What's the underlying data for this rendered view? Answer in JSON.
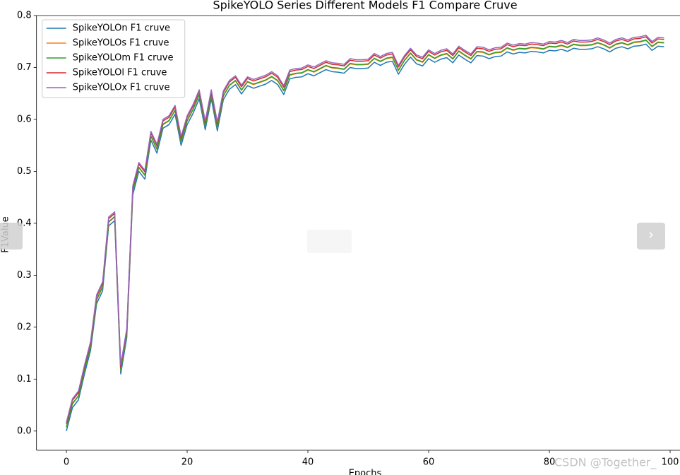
{
  "chart_data": {
    "type": "line",
    "title": "SpikeYOLO Series Different Models F1 Compare Cruve",
    "x_label": "Epochs",
    "y_label": "F1Value",
    "legend": "upper left",
    "grid": false,
    "xlim": [
      -4.95,
      103.95
    ],
    "ylim": [
      -0.037,
      0.8
    ],
    "xticks": [
      0,
      20,
      40,
      60,
      80,
      100
    ],
    "yticks": [
      {
        "value": 0,
        "label": "0.0"
      },
      0.1,
      0.2,
      0.3,
      0.4,
      0.5,
      0.6,
      0.7,
      0.8
    ],
    "x": [
      0,
      1,
      2,
      3,
      4,
      5,
      6,
      7,
      8,
      9,
      10,
      11,
      12,
      13,
      14,
      15,
      16,
      17,
      18,
      19,
      20,
      21,
      22,
      23,
      24,
      25,
      26,
      27,
      28,
      29,
      30,
      31,
      32,
      33,
      34,
      35,
      36,
      37,
      38,
      39,
      40,
      41,
      42,
      43,
      44,
      45,
      46,
      47,
      48,
      49,
      50,
      51,
      52,
      53,
      54,
      55,
      56,
      57,
      58,
      59,
      60,
      61,
      62,
      63,
      64,
      65,
      66,
      67,
      68,
      69,
      70,
      71,
      72,
      73,
      74,
      75,
      76,
      77,
      78,
      79,
      80,
      81,
      82,
      83,
      84,
      85,
      86,
      87,
      88,
      89,
      90,
      91,
      92,
      93,
      94,
      95,
      96,
      97,
      98,
      99
    ],
    "series": [
      {
        "name": "SpikeYOLOn F1 cruve",
        "color": "#1f77b4",
        "values": [
          0.0,
          0.045,
          0.06,
          0.11,
          0.155,
          0.245,
          0.27,
          0.395,
          0.405,
          0.11,
          0.18,
          0.455,
          0.5,
          0.485,
          0.56,
          0.535,
          0.583,
          0.59,
          0.61,
          0.55,
          0.59,
          0.612,
          0.64,
          0.58,
          0.64,
          0.578,
          0.638,
          0.658,
          0.667,
          0.649,
          0.665,
          0.66,
          0.664,
          0.668,
          0.675,
          0.667,
          0.648,
          0.678,
          0.681,
          0.682,
          0.688,
          0.684,
          0.69,
          0.696,
          0.692,
          0.691,
          0.689,
          0.7,
          0.698,
          0.698,
          0.699,
          0.71,
          0.704,
          0.71,
          0.712,
          0.687,
          0.706,
          0.72,
          0.707,
          0.703,
          0.717,
          0.71,
          0.716,
          0.719,
          0.709,
          0.724,
          0.716,
          0.709,
          0.723,
          0.722,
          0.717,
          0.721,
          0.722,
          0.73,
          0.726,
          0.729,
          0.728,
          0.731,
          0.73,
          0.728,
          0.733,
          0.732,
          0.735,
          0.731,
          0.737,
          0.735,
          0.735,
          0.736,
          0.74,
          0.736,
          0.73,
          0.737,
          0.74,
          0.736,
          0.741,
          0.742,
          0.745,
          0.733,
          0.741,
          0.74
        ]
      },
      {
        "name": "SpikeYOLOs F1 cruve",
        "color": "#ff7f0e",
        "values": [
          0.007,
          0.052,
          0.067,
          0.117,
          0.162,
          0.252,
          0.277,
          0.402,
          0.412,
          0.117,
          0.187,
          0.462,
          0.507,
          0.492,
          0.567,
          0.542,
          0.59,
          0.597,
          0.617,
          0.557,
          0.597,
          0.619,
          0.647,
          0.587,
          0.647,
          0.585,
          0.645,
          0.665,
          0.674,
          0.656,
          0.672,
          0.667,
          0.671,
          0.675,
          0.682,
          0.674,
          0.655,
          0.685,
          0.688,
          0.689,
          0.695,
          0.691,
          0.697,
          0.703,
          0.699,
          0.698,
          0.696,
          0.707,
          0.705,
          0.705,
          0.706,
          0.717,
          0.711,
          0.717,
          0.719,
          0.694,
          0.713,
          0.727,
          0.714,
          0.71,
          0.724,
          0.717,
          0.723,
          0.726,
          0.716,
          0.731,
          0.723,
          0.716,
          0.73,
          0.729,
          0.724,
          0.728,
          0.729,
          0.737,
          0.733,
          0.736,
          0.735,
          0.738,
          0.737,
          0.735,
          0.74,
          0.739,
          0.742,
          0.738,
          0.744,
          0.742,
          0.742,
          0.743,
          0.747,
          0.743,
          0.737,
          0.744,
          0.747,
          0.743,
          0.748,
          0.749,
          0.752,
          0.74,
          0.748,
          0.747
        ]
      },
      {
        "name": "SpikeYOLOm F1 cruve",
        "color": "#2ca02c",
        "values": [
          0.008,
          0.053,
          0.068,
          0.118,
          0.163,
          0.253,
          0.278,
          0.403,
          0.413,
          0.118,
          0.188,
          0.463,
          0.508,
          0.493,
          0.568,
          0.543,
          0.591,
          0.598,
          0.618,
          0.558,
          0.598,
          0.62,
          0.648,
          0.588,
          0.648,
          0.586,
          0.646,
          0.666,
          0.675,
          0.657,
          0.673,
          0.668,
          0.672,
          0.676,
          0.683,
          0.675,
          0.656,
          0.686,
          0.689,
          0.69,
          0.696,
          0.692,
          0.698,
          0.704,
          0.7,
          0.699,
          0.697,
          0.708,
          0.706,
          0.706,
          0.707,
          0.718,
          0.712,
          0.718,
          0.72,
          0.695,
          0.714,
          0.728,
          0.715,
          0.711,
          0.725,
          0.718,
          0.724,
          0.727,
          0.717,
          0.732,
          0.724,
          0.717,
          0.731,
          0.73,
          0.725,
          0.729,
          0.73,
          0.738,
          0.734,
          0.737,
          0.736,
          0.739,
          0.738,
          0.736,
          0.741,
          0.74,
          0.743,
          0.739,
          0.745,
          0.743,
          0.743,
          0.744,
          0.748,
          0.744,
          0.738,
          0.745,
          0.748,
          0.744,
          0.749,
          0.75,
          0.753,
          0.741,
          0.749,
          0.748
        ]
      },
      {
        "name": "SpikeYOLOl F1 cruve",
        "color": "#d62728",
        "values": [
          0.014,
          0.059,
          0.074,
          0.124,
          0.169,
          0.259,
          0.284,
          0.409,
          0.419,
          0.124,
          0.194,
          0.469,
          0.514,
          0.499,
          0.574,
          0.549,
          0.597,
          0.604,
          0.624,
          0.564,
          0.604,
          0.626,
          0.654,
          0.594,
          0.654,
          0.592,
          0.652,
          0.672,
          0.681,
          0.663,
          0.679,
          0.674,
          0.678,
          0.682,
          0.689,
          0.681,
          0.662,
          0.692,
          0.695,
          0.696,
          0.702,
          0.698,
          0.704,
          0.71,
          0.706,
          0.705,
          0.703,
          0.714,
          0.712,
          0.712,
          0.713,
          0.724,
          0.718,
          0.724,
          0.726,
          0.701,
          0.72,
          0.734,
          0.721,
          0.717,
          0.731,
          0.724,
          0.73,
          0.733,
          0.723,
          0.738,
          0.73,
          0.723,
          0.737,
          0.736,
          0.731,
          0.735,
          0.736,
          0.744,
          0.74,
          0.743,
          0.742,
          0.745,
          0.744,
          0.742,
          0.747,
          0.746,
          0.749,
          0.745,
          0.751,
          0.749,
          0.749,
          0.75,
          0.754,
          0.75,
          0.744,
          0.751,
          0.754,
          0.75,
          0.755,
          0.756,
          0.759,
          0.747,
          0.755,
          0.754
        ]
      },
      {
        "name": "SpikeYOLOx F1 cruve",
        "color": "#9467bd",
        "values": [
          0.017,
          0.062,
          0.077,
          0.127,
          0.172,
          0.262,
          0.287,
          0.412,
          0.422,
          0.127,
          0.197,
          0.472,
          0.517,
          0.502,
          0.577,
          0.552,
          0.6,
          0.607,
          0.627,
          0.567,
          0.607,
          0.629,
          0.657,
          0.597,
          0.657,
          0.595,
          0.655,
          0.675,
          0.684,
          0.666,
          0.682,
          0.677,
          0.681,
          0.685,
          0.692,
          0.684,
          0.665,
          0.695,
          0.698,
          0.699,
          0.705,
          0.701,
          0.707,
          0.713,
          0.709,
          0.708,
          0.706,
          0.717,
          0.715,
          0.715,
          0.716,
          0.727,
          0.721,
          0.727,
          0.729,
          0.704,
          0.723,
          0.737,
          0.724,
          0.72,
          0.734,
          0.727,
          0.733,
          0.736,
          0.726,
          0.741,
          0.733,
          0.726,
          0.74,
          0.739,
          0.734,
          0.738,
          0.739,
          0.747,
          0.743,
          0.746,
          0.745,
          0.748,
          0.747,
          0.745,
          0.75,
          0.749,
          0.752,
          0.748,
          0.754,
          0.752,
          0.752,
          0.753,
          0.757,
          0.753,
          0.747,
          0.754,
          0.757,
          0.753,
          0.758,
          0.759,
          0.762,
          0.75,
          0.758,
          0.757
        ]
      }
    ],
    "watermark": "CSDN @Together_"
  },
  "viewer": {
    "next_button": "›"
  }
}
